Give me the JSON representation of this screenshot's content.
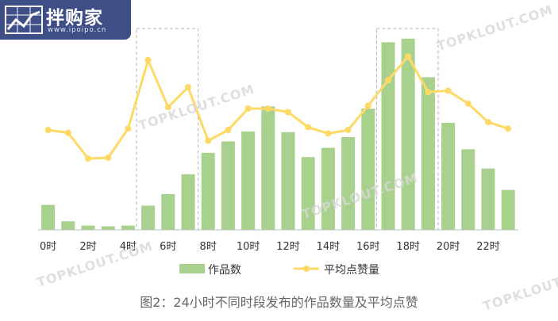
{
  "brand": {
    "name": "拌购家",
    "url": "www.ipoipo.cn"
  },
  "watermark": "TOPKLOUT.COM",
  "caption": "图2：24小时不同时段发布的作品数量及平均点赞",
  "colors": {
    "bar": "#a9d18e",
    "line": "#ffd966",
    "highlight_box": "#b3b3b3",
    "logo_bg": "#3d4f86"
  },
  "chart_data": {
    "type": "bar+line",
    "categories": [
      "0时",
      "1时",
      "2时",
      "3时",
      "4时",
      "5时",
      "6时",
      "7时",
      "8时",
      "9时",
      "10时",
      "11时",
      "12时",
      "13时",
      "14时",
      "15时",
      "16时",
      "17时",
      "18时",
      "19时",
      "20时",
      "21时",
      "22时",
      "23时"
    ],
    "tick_labels": [
      "0时",
      "2时",
      "4时",
      "6时",
      "8时",
      "10时",
      "12时",
      "14时",
      "16时",
      "18时",
      "20时",
      "22时"
    ],
    "series": [
      {
        "name": "作品数",
        "type": "bar",
        "values": [
          35,
          12,
          6,
          5,
          6,
          34,
          50,
          78,
          108,
          124,
          138,
          173,
          137,
          102,
          115,
          130,
          170,
          263,
          268,
          214,
          150,
          113,
          86,
          56
        ]
      },
      {
        "name": "平均点赞量",
        "type": "line",
        "values": [
          140,
          136,
          100,
          101,
          142,
          238,
          172,
          200,
          125,
          140,
          170,
          170,
          165,
          144,
          135,
          140,
          174,
          210,
          243,
          193,
          195,
          177,
          151,
          142
        ]
      }
    ],
    "highlight_ranges": [
      [
        5,
        7
      ],
      [
        17,
        19
      ]
    ],
    "y_axis_visible": false,
    "grid": false,
    "legend_position": "bottom"
  }
}
